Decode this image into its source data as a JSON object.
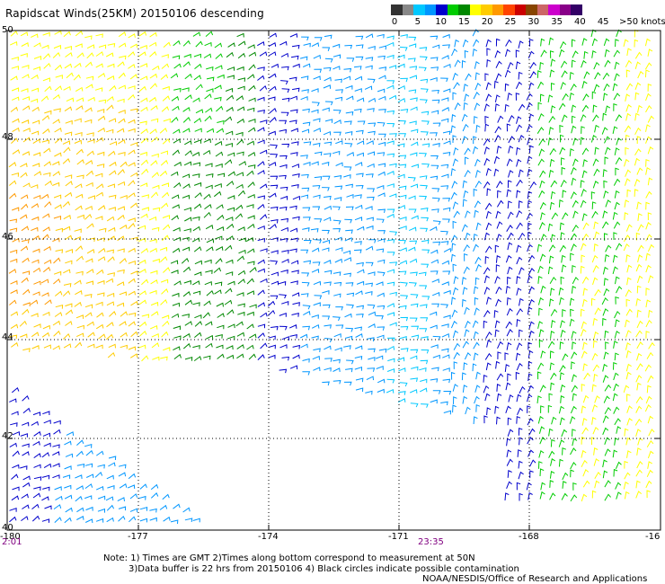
{
  "title": "Rapidscat Winds(25KM) 20150106 descending",
  "legend": {
    "labels": [
      "0",
      "5",
      "10",
      "15",
      "20",
      "25",
      "30",
      "35",
      "40",
      "45",
      ">50 knots"
    ],
    "colors": [
      "#333333",
      "#888888",
      "#00c8ff",
      "#0096ff",
      "#0000cc",
      "#00cc00",
      "#008800",
      "#ffff00",
      "#ffcc00",
      "#ff9900",
      "#ff4400",
      "#cc0000",
      "#884400",
      "#cc6666",
      "#cc00cc",
      "#880088",
      "#330066"
    ]
  },
  "map": {
    "lat_labels": [
      "50",
      "48",
      "46",
      "44",
      "42",
      "40"
    ],
    "lon_labels": [
      "-180",
      "-177",
      "-174",
      "-171",
      "-168",
      "-16"
    ],
    "lon_range": [
      -180,
      -165
    ],
    "lat_range": [
      40,
      50
    ]
  },
  "times": {
    "left": "2:01",
    "mid": "23:35"
  },
  "notes": {
    "line1": "Note: 1) Times are GMT 2)Times along bottom correspond to measurement at 50N",
    "line2": "3)Data buffer is 22 hrs from 20150106 4) Black circles indicate possible contamination",
    "credit": "NOAA/NESDIS/Office of Research and Applications"
  },
  "colors": {
    "grid": "#000000",
    "frame": "#000000"
  }
}
